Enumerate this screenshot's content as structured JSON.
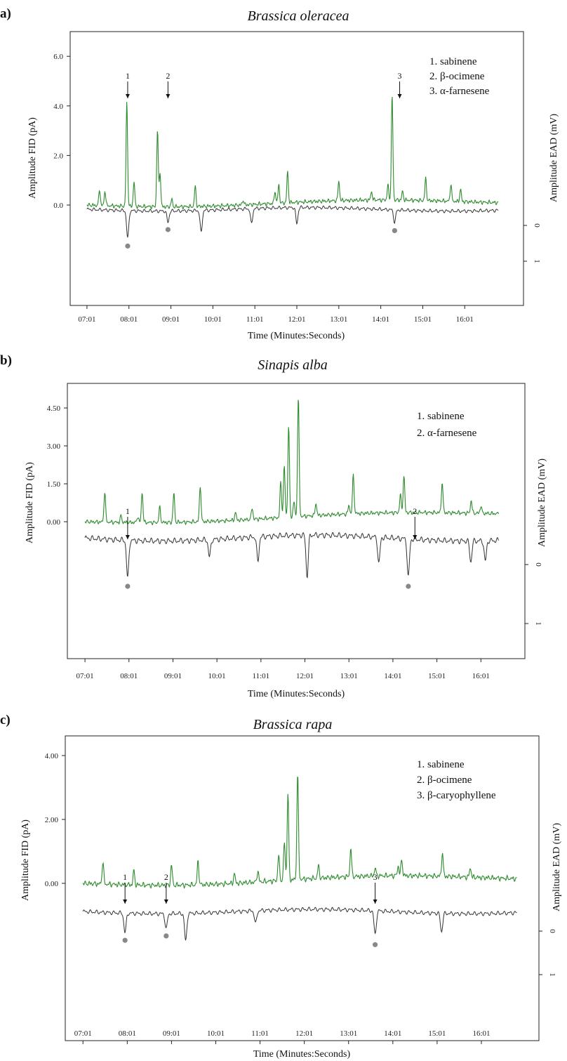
{
  "chart_data": [
    {
      "type": "line",
      "panel_label": "a)",
      "title": "Brassica oleracea",
      "xlabel": "Time (Minutes:Seconds)",
      "ylabel_left": "Amplitude FID (pA)",
      "ylabel_right": "Amplitude EAD (mV)",
      "x_ticks": [
        "07:01",
        "08:01",
        "09:01",
        "10:01",
        "11:01",
        "12:01",
        "13:01",
        "14:01",
        "15:01",
        "16:01"
      ],
      "y_ticks_left": [
        "6.0",
        "4.0",
        "2.0",
        "0.0"
      ],
      "y_ticks_right": [
        "0",
        "1"
      ],
      "legend": [
        "1.   sabinene",
        "2.   β-ocimene",
        "3.   α-farnesene"
      ],
      "series": [
        {
          "name": "FID",
          "color": "#2e8b2e",
          "baseline": 0.0,
          "drift_end": 0.15,
          "peaks": [
            [
              7.3,
              0.65
            ],
            [
              7.43,
              0.6
            ],
            [
              7.95,
              4.2
            ],
            [
              8.12,
              1.0
            ],
            [
              8.68,
              3.1
            ],
            [
              8.74,
              1.4
            ],
            [
              9.02,
              0.3
            ],
            [
              9.58,
              0.82
            ],
            [
              10.72,
              0.2
            ],
            [
              11.48,
              0.5
            ],
            [
              11.57,
              0.75
            ],
            [
              11.78,
              1.25
            ],
            [
              13.0,
              0.8
            ],
            [
              13.78,
              0.35
            ],
            [
              14.17,
              0.6
            ],
            [
              14.27,
              4.2
            ],
            [
              14.52,
              0.35
            ],
            [
              15.07,
              0.9
            ],
            [
              15.67,
              0.7
            ],
            [
              15.9,
              0.5
            ]
          ]
        },
        {
          "name": "EAD",
          "color": "#333333",
          "baseline": 0.0,
          "dips": [
            [
              7.97,
              0.78
            ],
            [
              8.93,
              0.32
            ],
            [
              9.72,
              0.62
            ],
            [
              10.92,
              0.42
            ],
            [
              12.0,
              0.45
            ],
            [
              14.33,
              0.35
            ]
          ]
        }
      ],
      "peak_markers": [
        {
          "label": "1",
          "x": 7.97
        },
        {
          "label": "2",
          "x": 8.93
        },
        {
          "label": "3",
          "x": 14.45
        }
      ],
      "response_dots": [
        7.97,
        8.93,
        14.33
      ]
    },
    {
      "type": "line",
      "panel_label": "b)",
      "title": "Sinapis alba",
      "xlabel": "Time (Minutes:Seconds)",
      "ylabel_left": "Amplitude FID (pA)",
      "ylabel_right": "Amplitude EAD (mV)",
      "x_ticks": [
        "07:01",
        "08:01",
        "09:01",
        "10:01",
        "11:01",
        "12:01",
        "13:01",
        "14:01",
        "15:01",
        "16:01"
      ],
      "y_ticks_left": [
        "4.50",
        "3.00",
        "1.50",
        "0.00"
      ],
      "y_ticks_right": [
        "0",
        "1"
      ],
      "legend": [
        "1.   sabinene",
        "2.   α-farnesene"
      ],
      "series": [
        {
          "name": "FID",
          "color": "#2e8b2e",
          "baseline": 0.0,
          "drift_end": 0.35,
          "peaks": [
            [
              7.45,
              1.2
            ],
            [
              7.82,
              0.25
            ],
            [
              8.2,
              0.25
            ],
            [
              8.3,
              1.2
            ],
            [
              8.7,
              0.6
            ],
            [
              9.02,
              1.15
            ],
            [
              9.62,
              1.45
            ],
            [
              10.42,
              0.3
            ],
            [
              10.8,
              0.45
            ],
            [
              11.45,
              1.4
            ],
            [
              11.53,
              2.0
            ],
            [
              11.63,
              3.6
            ],
            [
              11.75,
              0.6
            ],
            [
              11.85,
              4.7
            ],
            [
              12.25,
              0.5
            ],
            [
              13.0,
              0.35
            ],
            [
              13.1,
              1.55
            ],
            [
              14.17,
              0.7
            ],
            [
              14.25,
              1.45
            ],
            [
              15.12,
              1.2
            ],
            [
              15.78,
              0.5
            ],
            [
              16.0,
              0.3
            ]
          ]
        },
        {
          "name": "EAD",
          "color": "#333333",
          "baseline": 0.0,
          "dips": [
            [
              7.97,
              0.65
            ],
            [
              9.83,
              0.3
            ],
            [
              10.93,
              0.42
            ],
            [
              12.05,
              0.7
            ],
            [
              13.68,
              0.45
            ],
            [
              14.35,
              0.65
            ],
            [
              15.77,
              0.35
            ],
            [
              16.1,
              0.35
            ]
          ]
        }
      ],
      "peak_markers": [
        {
          "label": "1",
          "x": 7.97
        },
        {
          "label": "2",
          "x": 14.5
        }
      ],
      "response_dots": [
        7.97,
        14.35
      ]
    },
    {
      "type": "line",
      "panel_label": "c)",
      "title": "Brassica rapa",
      "xlabel": "Time (Minutes:Seconds)",
      "ylabel_left": "Amplitude FID (pA)",
      "ylabel_right": "Amplitude EAD (mV)",
      "x_ticks": [
        "07:01",
        "08:01",
        "09:01",
        "10:01",
        "11:01",
        "12:01",
        "13:01",
        "14:01",
        "15:01",
        "16:01"
      ],
      "y_ticks_left": [
        "4.00",
        "2.00",
        "0.00"
      ],
      "y_ticks_right": [
        "0",
        "1"
      ],
      "legend": [
        "1.   sabinene",
        "2.   β-ocimene",
        "3.   β-caryophyllene"
      ],
      "series": [
        {
          "name": "FID",
          "color": "#2e8b2e",
          "baseline": 0.0,
          "drift_end": 0.2,
          "peaks": [
            [
              7.45,
              0.7
            ],
            [
              8.15,
              0.45
            ],
            [
              9.0,
              0.65
            ],
            [
              9.6,
              0.75
            ],
            [
              10.42,
              0.3
            ],
            [
              10.95,
              0.35
            ],
            [
              11.42,
              0.8
            ],
            [
              11.55,
              1.2
            ],
            [
              11.63,
              2.7
            ],
            [
              11.85,
              3.3
            ],
            [
              12.32,
              0.4
            ],
            [
              13.05,
              0.9
            ],
            [
              13.6,
              0.25
            ],
            [
              14.12,
              0.3
            ],
            [
              14.2,
              0.5
            ],
            [
              15.12,
              0.75
            ],
            [
              15.75,
              0.3
            ]
          ]
        },
        {
          "name": "EAD",
          "color": "#333333",
          "baseline": 0.0,
          "dips": [
            [
              7.95,
              0.45
            ],
            [
              8.88,
              0.35
            ],
            [
              9.32,
              0.65
            ],
            [
              10.9,
              0.3
            ],
            [
              13.6,
              0.55
            ],
            [
              15.1,
              0.42
            ]
          ]
        }
      ],
      "peak_markers": [
        {
          "label": "1",
          "x": 7.95
        },
        {
          "label": "2",
          "x": 8.88
        },
        {
          "label": "3",
          "x": 13.6
        }
      ],
      "response_dots": [
        7.95,
        8.88,
        13.6
      ]
    }
  ]
}
